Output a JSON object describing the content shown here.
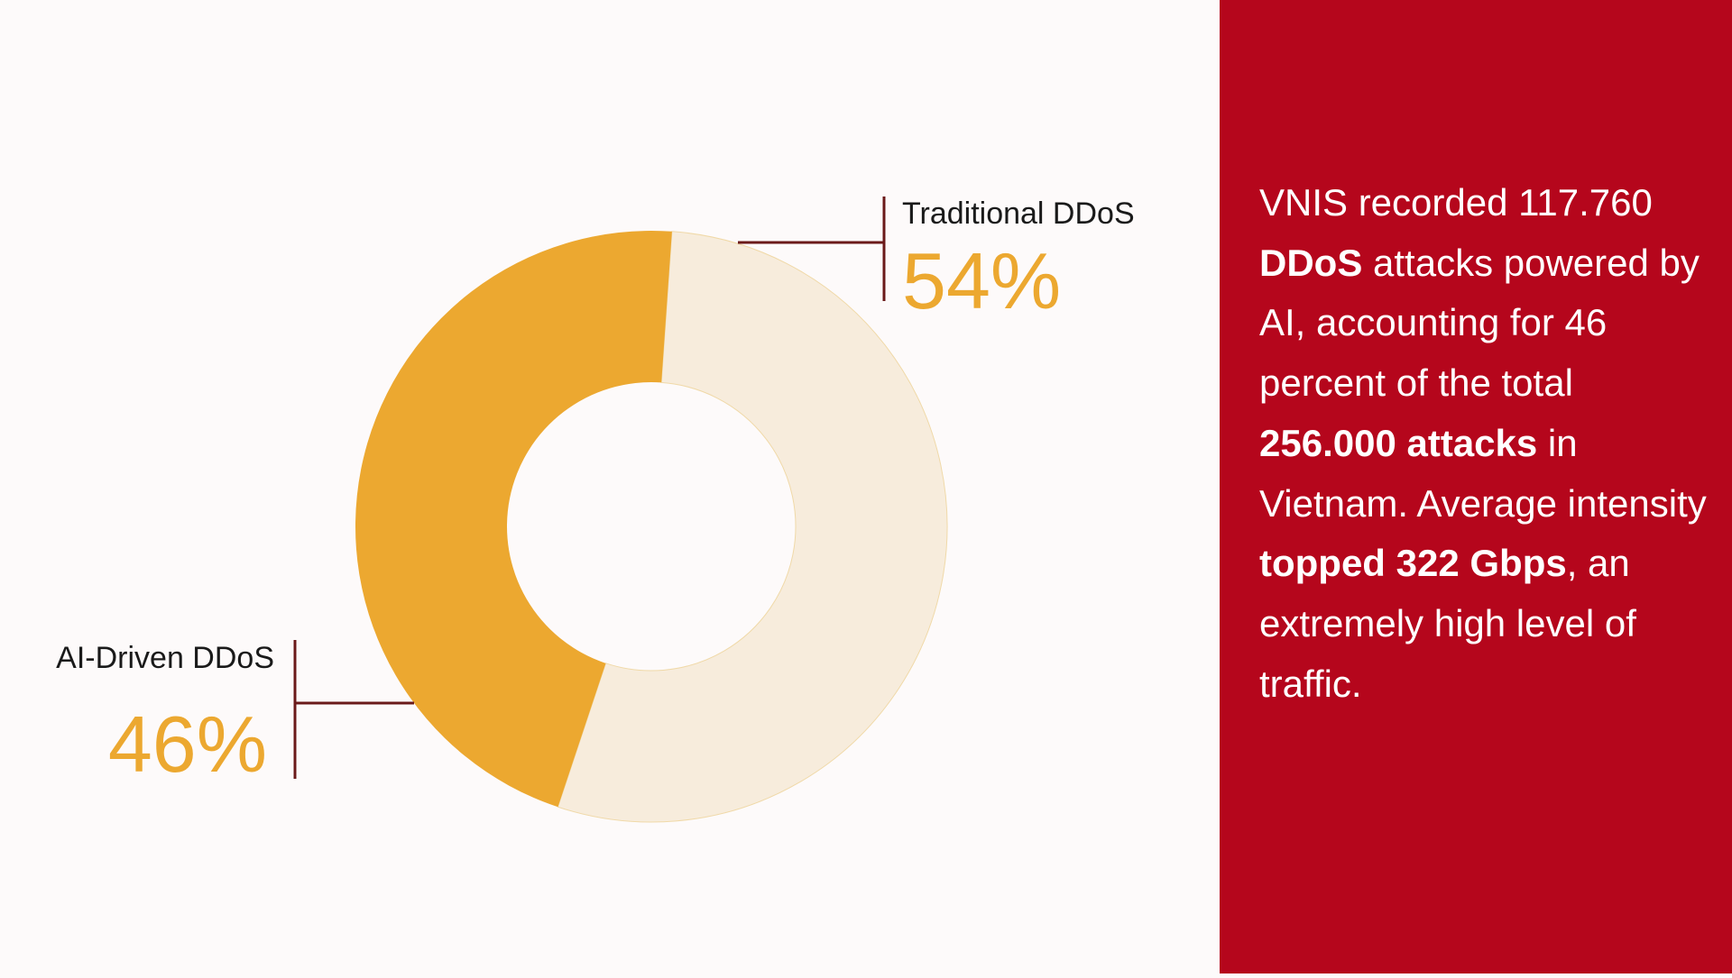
{
  "chart_data": {
    "type": "pie",
    "style": "donut",
    "series": [
      {
        "name": "Traditional DDoS",
        "value": 54,
        "label": "54%",
        "color": "#f7ecdc"
      },
      {
        "name": "AI-Driven DDoS",
        "value": 46,
        "label": "46%",
        "color": "#eca830"
      }
    ]
  },
  "colors": {
    "panel": "#b5061c",
    "accent": "#eca830",
    "leader": "#6b1a1a"
  },
  "panel": {
    "segments": [
      {
        "text": "VNIS recorded 117.760 ",
        "bold": false
      },
      {
        "text": "DDoS",
        "bold": true
      },
      {
        "text": " attacks powered by AI, accounting for 46 percent of the total ",
        "bold": false
      },
      {
        "text": "256.000 attacks",
        "bold": true
      },
      {
        "text": " in Vietnam. Average intensity ",
        "bold": false
      },
      {
        "text": "topped 322 Gbps",
        "bold": true
      },
      {
        "text": ", an extremely high level of traffic.",
        "bold": false
      }
    ]
  }
}
